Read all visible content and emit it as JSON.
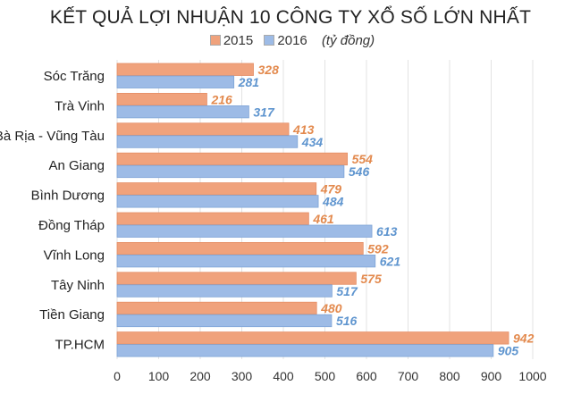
{
  "chart_data": {
    "type": "bar",
    "orientation": "horizontal",
    "title": "KẾT QUẢ LỢI NHUẬN 10 CÔNG TY XỔ SỐ LỚN NHẤT",
    "unit": "(tỷ đồng)",
    "categories": [
      "Sóc Trăng",
      "Trà Vinh",
      "Bà Rịa - Vũng Tàu",
      "An Giang",
      "Bình Dương",
      "Đồng Tháp",
      "Vĩnh Long",
      "Tây Ninh",
      "Tiền Giang",
      "TP.HCM"
    ],
    "series": [
      {
        "name": "2015",
        "color": "#f0a27c",
        "label_color": "#e38a4e",
        "values": [
          328,
          216,
          413,
          554,
          479,
          461,
          592,
          575,
          480,
          942
        ]
      },
      {
        "name": "2016",
        "color": "#9dbbe6",
        "label_color": "#5f95cf",
        "values": [
          281,
          317,
          434,
          546,
          484,
          613,
          621,
          517,
          516,
          905
        ]
      }
    ],
    "xlim": [
      0,
      1000
    ],
    "xticks": [
      0,
      100,
      200,
      300,
      400,
      500,
      600,
      700,
      800,
      900,
      1000
    ],
    "grid": true,
    "legend_position": "top"
  }
}
